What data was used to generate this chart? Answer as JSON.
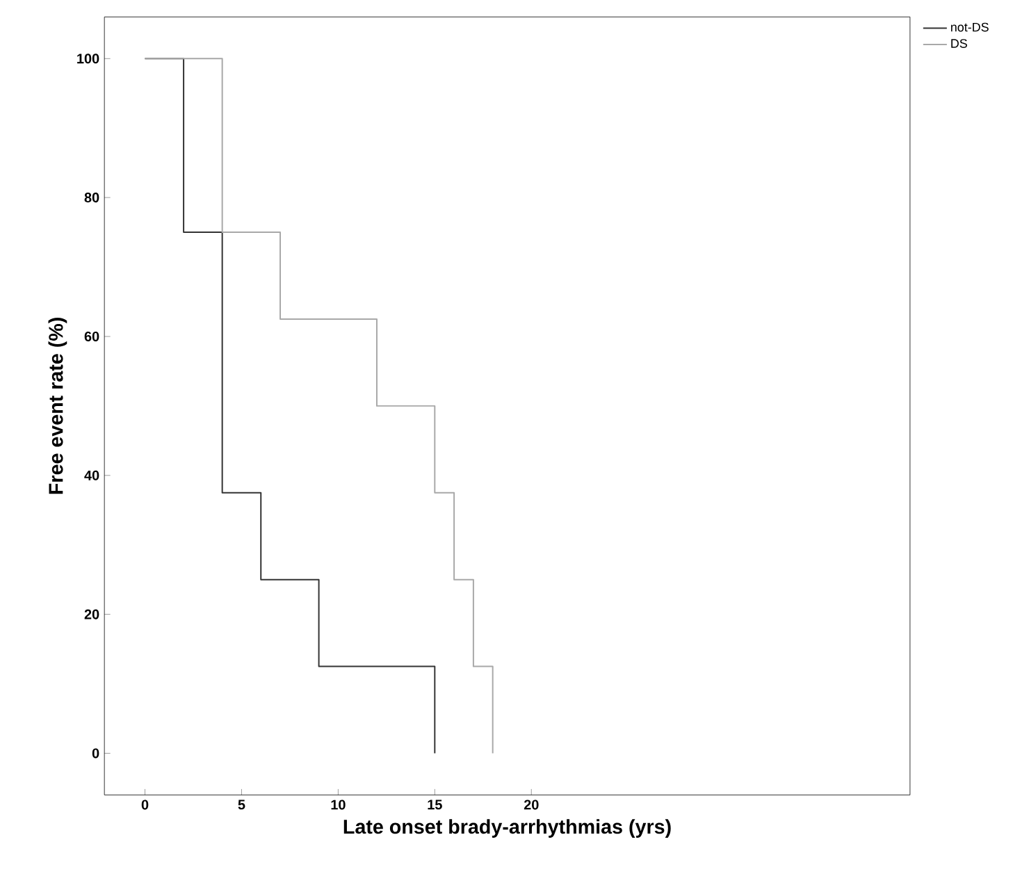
{
  "chart_data": {
    "type": "step",
    "xlabel": "Late onset brady-arrhythmias (yrs)",
    "ylabel": "Free event rate (%)",
    "xlim": [
      -2.1,
      39.6
    ],
    "ylim": [
      -6,
      106
    ],
    "xticks": [
      0,
      5,
      10,
      15,
      20
    ],
    "yticks": [
      0,
      20,
      40,
      60,
      80,
      100
    ],
    "grid": false,
    "legend": "top right",
    "marker": "none",
    "line_style": "solid",
    "series": [
      {
        "name": "not-DS",
        "color": "#333333",
        "x": [
          0,
          2,
          4,
          6,
          9,
          15
        ],
        "values": [
          100,
          75,
          37.5,
          25,
          12.5,
          0
        ]
      },
      {
        "name": "DS",
        "color": "#a8a8a8",
        "x": [
          0,
          4,
          7,
          12,
          15,
          16,
          17,
          18
        ],
        "values": [
          100,
          75,
          62.5,
          50,
          37.5,
          25,
          12.5,
          0
        ]
      }
    ]
  }
}
